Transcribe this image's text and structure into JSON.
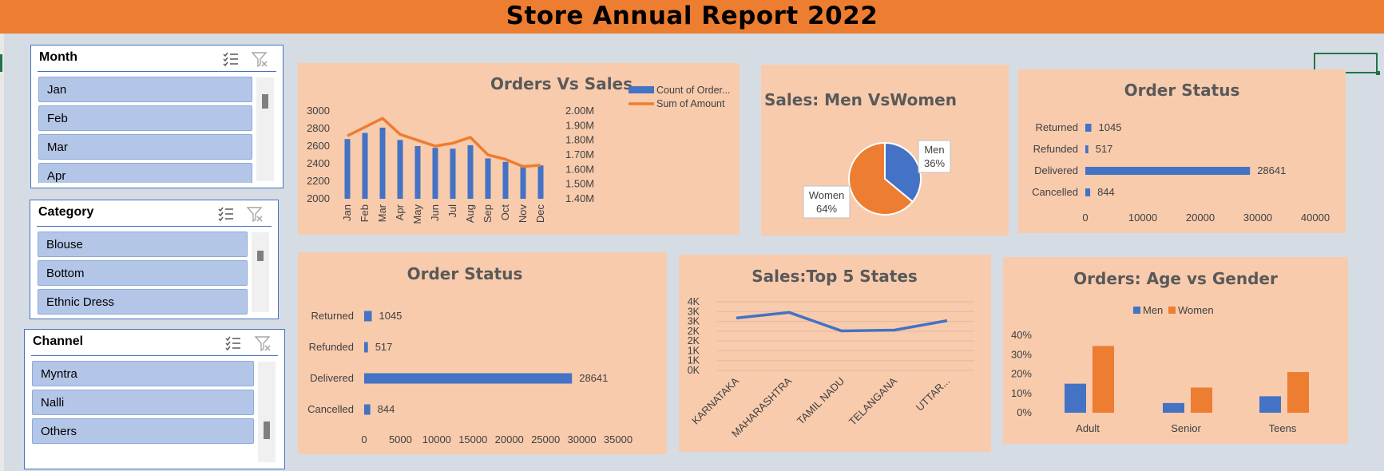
{
  "header": {
    "title": "Store Annual Report 2022"
  },
  "slicers": {
    "month": {
      "title": "Month",
      "items": [
        "Jan",
        "Feb",
        "Mar",
        "Apr"
      ]
    },
    "category": {
      "title": "Category",
      "items": [
        "Blouse",
        "Bottom",
        "Ethnic Dress"
      ]
    },
    "channel": {
      "title": "Channel",
      "items": [
        "Myntra",
        "Nalli",
        "Others"
      ]
    }
  },
  "chart_data": [
    {
      "id": "orders_vs_sales",
      "type": "bar+line",
      "title": "Orders Vs Sales",
      "categories": [
        "Jan",
        "Feb",
        "Mar",
        "Apr",
        "May",
        "Jun",
        "Jul",
        "Aug",
        "Sep",
        "Oct",
        "Nov",
        "Dec"
      ],
      "series": [
        {
          "name": "Count of Order...",
          "type": "bar",
          "axis": "left",
          "values": [
            2680,
            2750,
            2810,
            2670,
            2600,
            2580,
            2570,
            2610,
            2460,
            2420,
            2360,
            2380
          ]
        },
        {
          "name": "Sum of Amount",
          "type": "line",
          "axis": "right",
          "values": [
            1830000,
            1890000,
            1950000,
            1840000,
            1800000,
            1760000,
            1780000,
            1820000,
            1700000,
            1670000,
            1620000,
            1630000
          ]
        }
      ],
      "y_left": {
        "ticks": [
          "3000",
          "2800",
          "2600",
          "2400",
          "2200",
          "2000"
        ],
        "range": [
          2000,
          3000
        ]
      },
      "y_right": {
        "ticks": [
          "2.00M",
          "1.90M",
          "1.80M",
          "1.70M",
          "1.60M",
          "1.50M",
          "1.40M"
        ],
        "range": [
          1400000,
          2000000
        ]
      },
      "legend": "top-right"
    },
    {
      "id": "sales_men_women",
      "type": "pie",
      "title": "Sales: Men VsWomen",
      "slices": [
        {
          "name": "Men",
          "value": 36,
          "label": "36%",
          "color": "#4472c4"
        },
        {
          "name": "Women",
          "value": 64,
          "label": "64%",
          "color": "#ed7d31"
        }
      ]
    },
    {
      "id": "order_status_small",
      "type": "bar",
      "orientation": "horizontal",
      "title": "Order Status",
      "categories": [
        "Returned",
        "Refunded",
        "Delivered",
        "Cancelled"
      ],
      "values": [
        1045,
        517,
        28641,
        844
      ],
      "x_ticks": [
        "0",
        "10000",
        "20000",
        "30000",
        "40000"
      ],
      "xlim": [
        0,
        40000
      ]
    },
    {
      "id": "order_status_large",
      "type": "bar",
      "orientation": "horizontal",
      "title": "Order Status",
      "categories": [
        "Returned",
        "Refunded",
        "Delivered",
        "Cancelled"
      ],
      "values": [
        1045,
        517,
        28641,
        844
      ],
      "x_ticks": [
        "0",
        "5000",
        "10000",
        "15000",
        "20000",
        "25000",
        "30000",
        "35000"
      ],
      "xlim": [
        0,
        35000
      ]
    },
    {
      "id": "top5_states",
      "type": "line",
      "title": "Sales:Top 5 States",
      "categories": [
        "KARNATAKA",
        "MAHARASHTRA",
        "TAMIL NADU",
        "TELANGANA",
        "UTTAR..."
      ],
      "values": [
        3050,
        3380,
        2300,
        2350,
        2900
      ],
      "y_ticks": [
        "4K",
        "3K",
        "3K",
        "2K",
        "2K",
        "1K",
        "1K",
        "0K"
      ],
      "ylim": [
        0,
        4000
      ]
    },
    {
      "id": "age_vs_gender",
      "type": "bar",
      "title": "Orders: Age vs Gender",
      "categories": [
        "Adult",
        "Senior",
        "Teens"
      ],
      "series": [
        {
          "name": "Men",
          "values": [
            15,
            5,
            8.5
          ],
          "color": "#4472c4"
        },
        {
          "name": "Women",
          "values": [
            34.5,
            13,
            21
          ],
          "color": "#ed7d31"
        }
      ],
      "y_ticks": [
        "40%",
        "30%",
        "20%",
        "10%",
        "0%"
      ],
      "ylim": [
        0,
        40
      ],
      "legend": "top"
    }
  ],
  "colors": {
    "header": "#ed7d31",
    "panel": "#f8cbad",
    "blue": "#4472c4",
    "orange": "#ed7d31",
    "slicer_item": "#b4c6e7"
  }
}
